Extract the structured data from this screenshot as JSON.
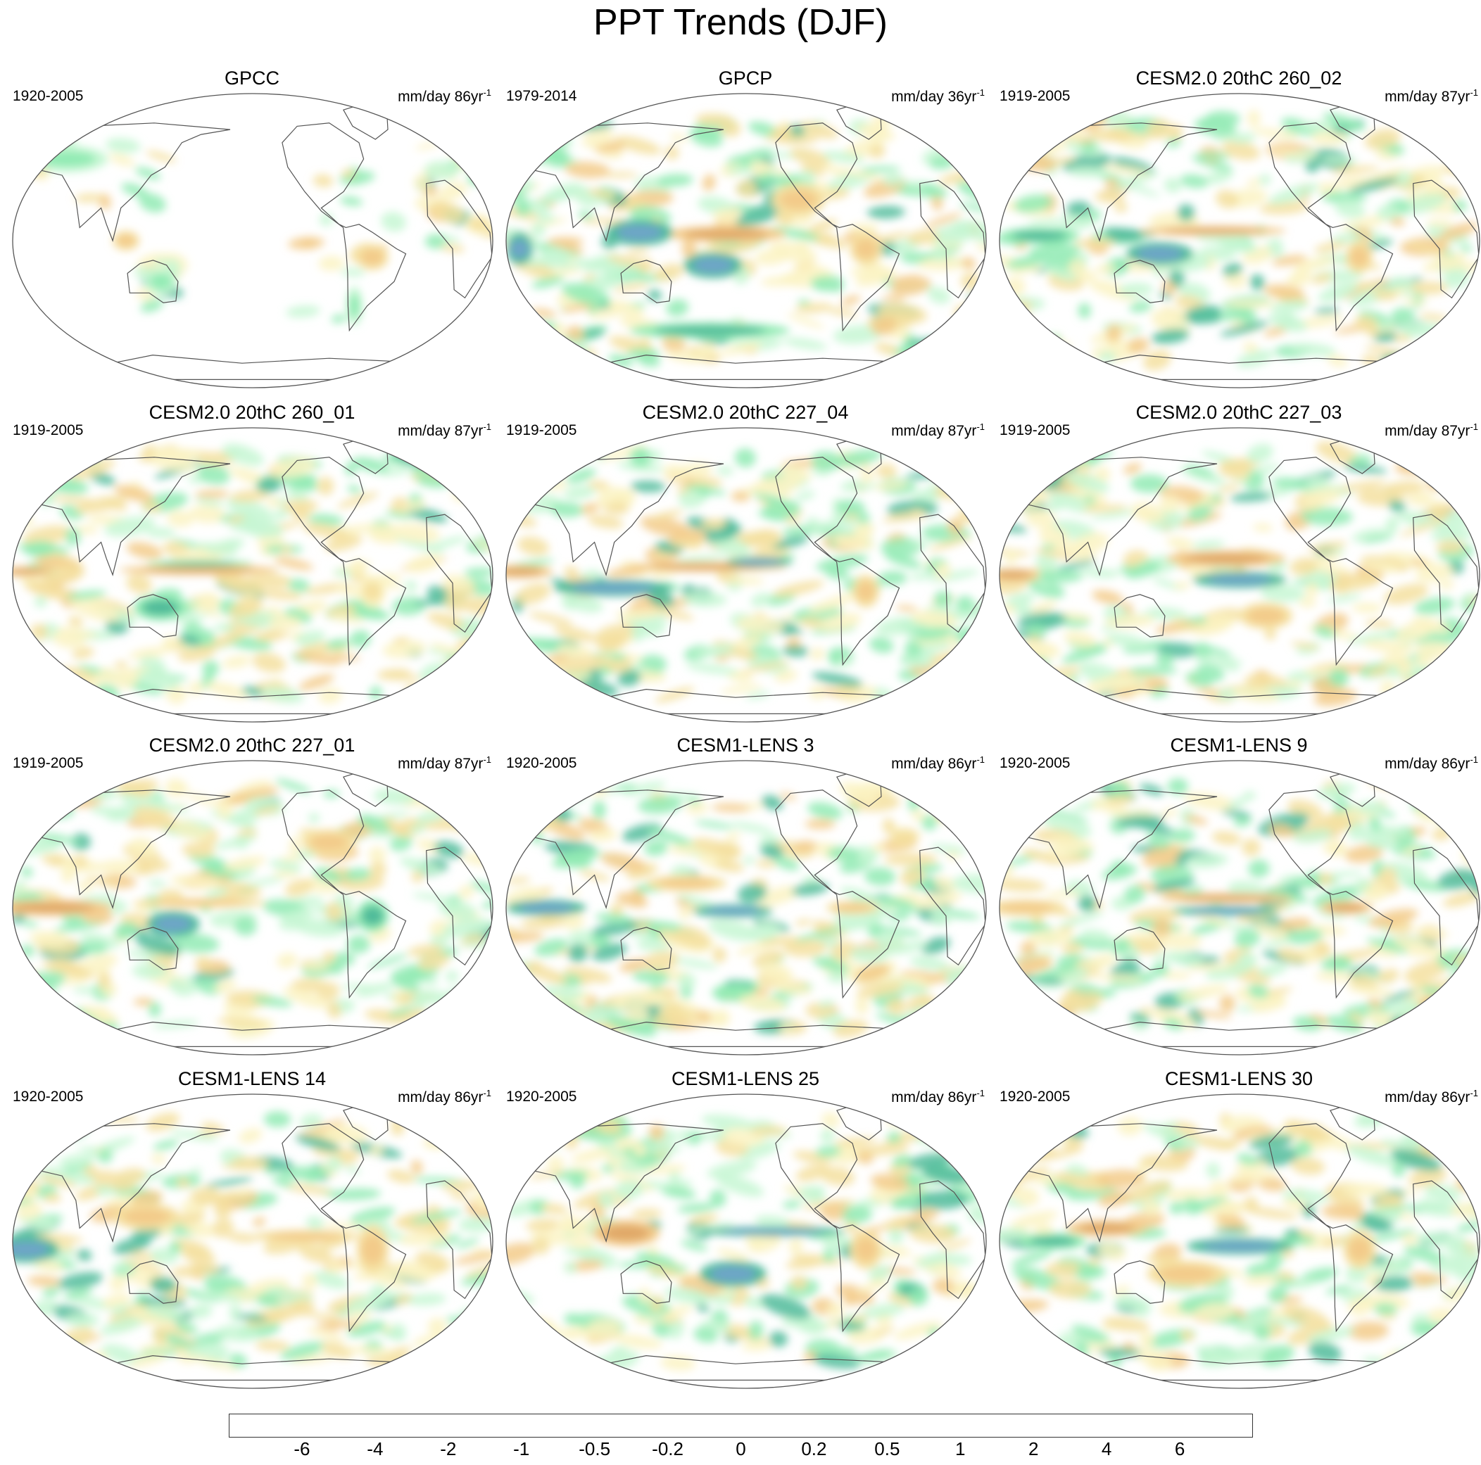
{
  "figure_title": "PPT Trends (DJF)",
  "chart_data": {
    "type": "heatmap",
    "variable": "DJF precipitation trend",
    "projection": "Robinson-like global ellipse, Pacific-centred",
    "panels": [
      {
        "title": "GPCC",
        "period": "1920-2005",
        "units": "mm/day 86yr",
        "units_exp": "-1",
        "coverage": "land",
        "seed": 11,
        "features": [
          {
            "lon": 300,
            "lat": -10,
            "w": 12,
            "h": 8,
            "v": -1.2
          },
          {
            "lon": 290,
            "lat": -40,
            "w": 6,
            "h": 12,
            "v": 0.8
          },
          {
            "lon": 140,
            "lat": -25,
            "w": 12,
            "h": 8,
            "v": 0.8
          },
          {
            "lon": 115,
            "lat": 0,
            "w": 10,
            "h": 6,
            "v": -1.5
          },
          {
            "lon": 60,
            "lat": 50,
            "w": 30,
            "h": 8,
            "v": 0.6
          },
          {
            "lon": 20,
            "lat": 10,
            "w": 10,
            "h": 6,
            "v": -0.8
          }
        ]
      },
      {
        "title": "GPCP",
        "period": "1979-2014",
        "units": "mm/day 36yr",
        "units_exp": "-1",
        "coverage": "global",
        "seed": 23,
        "features": [
          {
            "lon": 195,
            "lat": 4,
            "w": 45,
            "h": 5,
            "v": -2.5
          },
          {
            "lon": 130,
            "lat": 5,
            "w": 25,
            "h": 8,
            "v": 3.0
          },
          {
            "lon": 185,
            "lat": -15,
            "w": 22,
            "h": 8,
            "v": 3.0
          },
          {
            "lon": 40,
            "lat": -5,
            "w": 10,
            "h": 10,
            "v": 2.0
          },
          {
            "lon": 250,
            "lat": 25,
            "w": 20,
            "h": 10,
            "v": -1.5
          },
          {
            "lon": 300,
            "lat": -5,
            "w": 12,
            "h": 10,
            "v": -1.2
          },
          {
            "lon": 180,
            "lat": -55,
            "w": 60,
            "h": 5,
            "v": 1.2
          }
        ]
      },
      {
        "title": "CESM2.0 20thC 260_02",
        "period": "1919-2005",
        "units": "mm/day 87yr",
        "units_exp": "-1",
        "coverage": "global",
        "seed": 37,
        "features": [
          {
            "lon": 190,
            "lat": 6,
            "w": 55,
            "h": 3,
            "v": -2.5
          },
          {
            "lon": 150,
            "lat": -8,
            "w": 25,
            "h": 7,
            "v": 2.0
          },
          {
            "lon": 60,
            "lat": 3,
            "w": 30,
            "h": 5,
            "v": 1.5
          },
          {
            "lon": 300,
            "lat": -10,
            "w": 10,
            "h": 10,
            "v": -1.2
          }
        ]
      },
      {
        "title": "CESM2.0 20thC 260_01",
        "period": "1919-2005",
        "units": "mm/day 87yr",
        "units_exp": "-1",
        "coverage": "global",
        "seed": 41,
        "features": [
          {
            "lon": 170,
            "lat": 3,
            "w": 60,
            "h": 3,
            "v": -3.0
          },
          {
            "lon": 40,
            "lat": 2,
            "w": 20,
            "h": 3,
            "v": -2.5
          },
          {
            "lon": 170,
            "lat": 7,
            "w": 40,
            "h": 2,
            "v": 1.5
          },
          {
            "lon": 140,
            "lat": -20,
            "w": 20,
            "h": 8,
            "v": 1.5
          },
          {
            "lon": 300,
            "lat": -10,
            "w": 10,
            "h": 10,
            "v": -1.0
          }
        ]
      },
      {
        "title": "CESM2.0 20thC 227_04",
        "period": "1919-2005",
        "units": "mm/day 87yr",
        "units_exp": "-1",
        "coverage": "global",
        "seed": 53,
        "features": [
          {
            "lon": 180,
            "lat": 5,
            "w": 60,
            "h": 3,
            "v": -3.5
          },
          {
            "lon": 40,
            "lat": 2,
            "w": 25,
            "h": 4,
            "v": -3.5
          },
          {
            "lon": 110,
            "lat": -8,
            "w": 45,
            "h": 5,
            "v": 3.0
          },
          {
            "lon": 220,
            "lat": 8,
            "w": 25,
            "h": 3,
            "v": 2.5
          },
          {
            "lon": 300,
            "lat": -10,
            "w": 10,
            "h": 10,
            "v": -1.5
          }
        ]
      },
      {
        "title": "CESM2.0 20thC 227_03",
        "period": "1919-2005",
        "units": "mm/day 87yr",
        "units_exp": "-1",
        "coverage": "global",
        "seed": 67,
        "features": [
          {
            "lon": 200,
            "lat": 10,
            "w": 45,
            "h": 5,
            "v": -2.5
          },
          {
            "lon": 210,
            "lat": -3,
            "w": 35,
            "h": 5,
            "v": 2.5
          },
          {
            "lon": 40,
            "lat": 0,
            "w": 20,
            "h": 4,
            "v": -3.0
          },
          {
            "lon": 230,
            "lat": -25,
            "w": 20,
            "h": 8,
            "v": -1.5
          }
        ]
      },
      {
        "title": "CESM2.0 20thC 227_01",
        "period": "1919-2005",
        "units": "mm/day 87yr",
        "units_exp": "-1",
        "coverage": "global",
        "seed": 71,
        "features": [
          {
            "lon": 60,
            "lat": 0,
            "w": 45,
            "h": 5,
            "v": -2.5
          },
          {
            "lon": 150,
            "lat": -10,
            "w": 20,
            "h": 8,
            "v": 2.5
          },
          {
            "lon": 170,
            "lat": 3,
            "w": 50,
            "h": 3,
            "v": -1.5
          },
          {
            "lon": 300,
            "lat": -5,
            "w": 12,
            "h": 10,
            "v": 1.0
          },
          {
            "lon": 270,
            "lat": 40,
            "w": 20,
            "h": 8,
            "v": -1.5
          }
        ]
      },
      {
        "title": "CESM1-LENS 3",
        "period": "1920-2005",
        "units": "mm/day 86yr",
        "units_exp": "-1",
        "coverage": "global",
        "seed": 83,
        "features": [
          {
            "lon": 200,
            "lat": -2,
            "w": 30,
            "h": 4,
            "v": 2.5
          },
          {
            "lon": 60,
            "lat": 0,
            "w": 30,
            "h": 5,
            "v": 2.0
          },
          {
            "lon": 165,
            "lat": 15,
            "w": 30,
            "h": 5,
            "v": -1.5
          },
          {
            "lon": 290,
            "lat": 0,
            "w": 20,
            "h": 4,
            "v": -2.0
          }
        ]
      },
      {
        "title": "CESM1-LENS 9",
        "period": "1920-2005",
        "units": "mm/day 86yr",
        "units_exp": "-1",
        "coverage": "global",
        "seed": 97,
        "features": [
          {
            "lon": 200,
            "lat": 6,
            "w": 50,
            "h": 3,
            "v": -2.5
          },
          {
            "lon": 200,
            "lat": -2,
            "w": 40,
            "h": 3,
            "v": 2.0
          },
          {
            "lon": 50,
            "lat": 0,
            "w": 30,
            "h": 5,
            "v": -2.0
          },
          {
            "lon": 290,
            "lat": 0,
            "w": 20,
            "h": 4,
            "v": -2.5
          }
        ]
      },
      {
        "title": "CESM1-LENS 14",
        "period": "1920-2005",
        "units": "mm/day 86yr",
        "units_exp": "-1",
        "coverage": "global",
        "seed": 101,
        "features": [
          {
            "lon": 250,
            "lat": 3,
            "w": 40,
            "h": 4,
            "v": -2.0
          },
          {
            "lon": 40,
            "lat": -5,
            "w": 25,
            "h": 8,
            "v": 2.5
          },
          {
            "lon": 300,
            "lat": -5,
            "w": 12,
            "h": 15,
            "v": -2.0
          },
          {
            "lon": 130,
            "lat": 15,
            "w": 25,
            "h": 8,
            "v": -2.0
          }
        ]
      },
      {
        "title": "CESM1-LENS 25",
        "period": "1920-2005",
        "units": "mm/day 86yr",
        "units_exp": "-1",
        "coverage": "global",
        "seed": 113,
        "features": [
          {
            "lon": 230,
            "lat": 6,
            "w": 55,
            "h": 3,
            "v": 2.0
          },
          {
            "lon": 120,
            "lat": 5,
            "w": 25,
            "h": 8,
            "v": -2.5
          },
          {
            "lon": 200,
            "lat": -20,
            "w": 25,
            "h": 8,
            "v": 2.0
          },
          {
            "lon": 300,
            "lat": -5,
            "w": 12,
            "h": 12,
            "v": -2.0
          }
        ]
      },
      {
        "title": "CESM1-LENS 30",
        "period": "1920-2005",
        "units": "mm/day 86yr",
        "units_exp": "-1",
        "coverage": "global",
        "seed": 127,
        "features": [
          {
            "lon": 210,
            "lat": -3,
            "w": 40,
            "h": 5,
            "v": 3.0
          },
          {
            "lon": 110,
            "lat": 8,
            "w": 30,
            "h": 5,
            "v": -2.5
          },
          {
            "lon": 170,
            "lat": -20,
            "w": 30,
            "h": 8,
            "v": -1.5
          },
          {
            "lon": 300,
            "lat": -5,
            "w": 12,
            "h": 12,
            "v": -2.0
          },
          {
            "lon": 70,
            "lat": 0,
            "w": 25,
            "h": 5,
            "v": 1.5
          }
        ]
      }
    ],
    "colorbar": {
      "levels": [
        "-6",
        "-4",
        "-2",
        "-1",
        "-0.5",
        "-0.2",
        "0",
        "0.2",
        "0.5",
        "1",
        "2",
        "4",
        "6"
      ],
      "level_values": [
        -6,
        -4,
        -2,
        -1,
        -0.5,
        -0.2,
        0,
        0.2,
        0.5,
        1,
        2,
        4,
        6
      ],
      "colors": [
        "#b5692b",
        "#cf8a45",
        "#e0a868",
        "#f3cb8a",
        "#f5e0a0",
        "#fbf3c3",
        "#ffffff",
        "#ffffff",
        "#c7f7d4",
        "#92ebb4",
        "#4fbb9a",
        "#6ea5c8",
        "#066ca8",
        "#003c5c"
      ]
    }
  }
}
